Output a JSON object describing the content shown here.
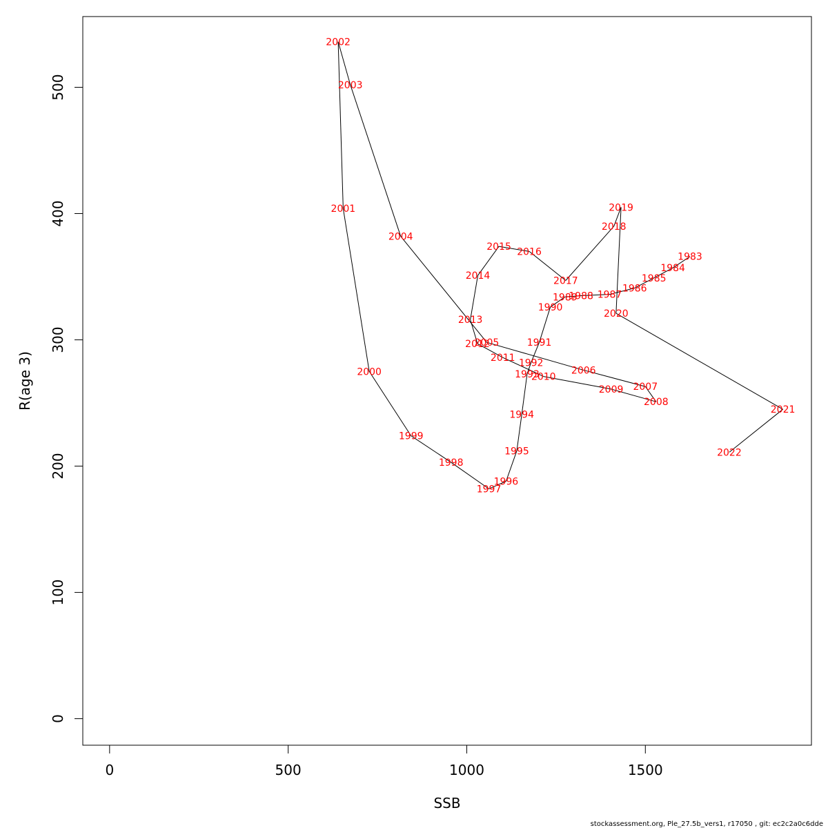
{
  "chart_data": {
    "type": "line",
    "xlabel": "SSB",
    "ylabel": "R(age 3)",
    "xlim": [
      -75,
      1965
    ],
    "ylim": [
      -21,
      556
    ],
    "x_ticks": [
      0,
      500,
      1000,
      1500
    ],
    "y_ticks": [
      0,
      100,
      200,
      300,
      400,
      500
    ],
    "line_color": "#000000",
    "label_color": "#ff0000",
    "grid": false,
    "legend": "none",
    "points": [
      {
        "year": "1983",
        "x": 1625,
        "y": 366
      },
      {
        "year": "1984",
        "x": 1577,
        "y": 357
      },
      {
        "year": "1985",
        "x": 1524,
        "y": 349
      },
      {
        "year": "1986",
        "x": 1470,
        "y": 341
      },
      {
        "year": "1987",
        "x": 1400,
        "y": 336
      },
      {
        "year": "1988",
        "x": 1320,
        "y": 335
      },
      {
        "year": "1989",
        "x": 1275,
        "y": 334
      },
      {
        "year": "1990",
        "x": 1234,
        "y": 326
      },
      {
        "year": "1991",
        "x": 1203,
        "y": 298
      },
      {
        "year": "1992",
        "x": 1180,
        "y": 282
      },
      {
        "year": "1993",
        "x": 1169,
        "y": 273
      },
      {
        "year": "1994",
        "x": 1154,
        "y": 241
      },
      {
        "year": "1995",
        "x": 1140,
        "y": 212
      },
      {
        "year": "1996",
        "x": 1110,
        "y": 188
      },
      {
        "year": "1997",
        "x": 1062,
        "y": 182
      },
      {
        "year": "1998",
        "x": 956,
        "y": 203
      },
      {
        "year": "1999",
        "x": 844,
        "y": 224
      },
      {
        "year": "2000",
        "x": 727,
        "y": 275
      },
      {
        "year": "2001",
        "x": 654,
        "y": 404
      },
      {
        "year": "2002",
        "x": 640,
        "y": 536
      },
      {
        "year": "2003",
        "x": 674,
        "y": 502
      },
      {
        "year": "2004",
        "x": 815,
        "y": 382
      },
      {
        "year": "2005",
        "x": 1056,
        "y": 298
      },
      {
        "year": "2006",
        "x": 1327,
        "y": 276
      },
      {
        "year": "2007",
        "x": 1500,
        "y": 263
      },
      {
        "year": "2008",
        "x": 1530,
        "y": 251
      },
      {
        "year": "2009",
        "x": 1404,
        "y": 261
      },
      {
        "year": "2010",
        "x": 1215,
        "y": 271
      },
      {
        "year": "2011",
        "x": 1101,
        "y": 286
      },
      {
        "year": "2012",
        "x": 1030,
        "y": 297
      },
      {
        "year": "2013",
        "x": 1010,
        "y": 316
      },
      {
        "year": "2014",
        "x": 1031,
        "y": 351
      },
      {
        "year": "2015",
        "x": 1090,
        "y": 374
      },
      {
        "year": "2016",
        "x": 1175,
        "y": 370
      },
      {
        "year": "2017",
        "x": 1277,
        "y": 347
      },
      {
        "year": "2018",
        "x": 1412,
        "y": 390
      },
      {
        "year": "2019",
        "x": 1432,
        "y": 405
      },
      {
        "year": "2020",
        "x": 1418,
        "y": 321
      },
      {
        "year": "2021",
        "x": 1885,
        "y": 245
      },
      {
        "year": "2022",
        "x": 1735,
        "y": 211
      }
    ]
  },
  "footer_text": "stockassessment.org, Ple_27.5b_vers1, r17050 , git: ec2c2a0c6dde"
}
